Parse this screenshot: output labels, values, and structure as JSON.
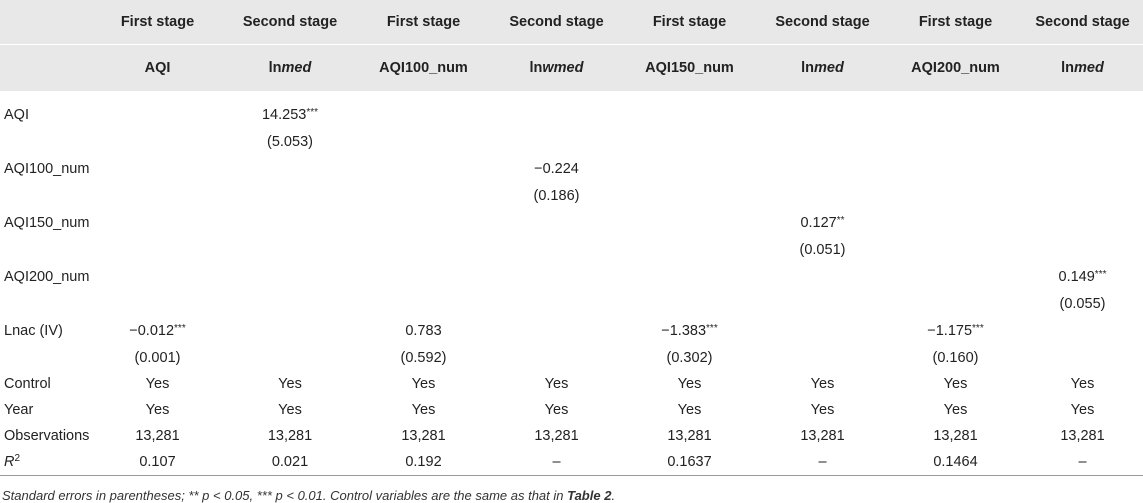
{
  "table": {
    "stage_headers": [
      "",
      "First stage",
      "Second stage",
      "First stage",
      "Second stage",
      "First stage",
      "Second stage",
      "First stage",
      "Second stage"
    ],
    "variable_headers": [
      {
        "main": "",
        "italic": ""
      },
      {
        "main": "AQI",
        "italic": ""
      },
      {
        "main": "ln",
        "italic": "med"
      },
      {
        "main": "AQI100_num",
        "italic": ""
      },
      {
        "main": "ln",
        "italic": "wmed"
      },
      {
        "main": "AQI150_num",
        "italic": ""
      },
      {
        "main": "ln",
        "italic": "med"
      },
      {
        "main": "AQI200_num",
        "italic": ""
      },
      {
        "main": "ln",
        "italic": "med"
      }
    ],
    "rows": [
      {
        "label": "AQI",
        "type": "coef",
        "cells": [
          {
            "v": ""
          },
          {
            "v": "14.253",
            "s": "***"
          },
          {
            "v": ""
          },
          {
            "v": ""
          },
          {
            "v": ""
          },
          {
            "v": ""
          },
          {
            "v": ""
          },
          {
            "v": ""
          }
        ]
      },
      {
        "label": "",
        "type": "se",
        "cells": [
          {
            "v": ""
          },
          {
            "v": "(5.053)"
          },
          {
            "v": ""
          },
          {
            "v": ""
          },
          {
            "v": ""
          },
          {
            "v": ""
          },
          {
            "v": ""
          },
          {
            "v": ""
          }
        ]
      },
      {
        "label": "AQI100_num",
        "type": "coef",
        "cells": [
          {
            "v": ""
          },
          {
            "v": ""
          },
          {
            "v": ""
          },
          {
            "v": "−0.224"
          },
          {
            "v": ""
          },
          {
            "v": ""
          },
          {
            "v": ""
          },
          {
            "v": ""
          }
        ]
      },
      {
        "label": "",
        "type": "se",
        "cells": [
          {
            "v": ""
          },
          {
            "v": ""
          },
          {
            "v": ""
          },
          {
            "v": "(0.186)"
          },
          {
            "v": ""
          },
          {
            "v": ""
          },
          {
            "v": ""
          },
          {
            "v": ""
          }
        ]
      },
      {
        "label": "AQI150_num",
        "type": "coef",
        "cells": [
          {
            "v": ""
          },
          {
            "v": ""
          },
          {
            "v": ""
          },
          {
            "v": ""
          },
          {
            "v": ""
          },
          {
            "v": "0.127",
            "s": "**"
          },
          {
            "v": ""
          },
          {
            "v": ""
          }
        ]
      },
      {
        "label": "",
        "type": "se",
        "cells": [
          {
            "v": ""
          },
          {
            "v": ""
          },
          {
            "v": ""
          },
          {
            "v": ""
          },
          {
            "v": ""
          },
          {
            "v": "(0.051)"
          },
          {
            "v": ""
          },
          {
            "v": ""
          }
        ]
      },
      {
        "label": "AQI200_num",
        "type": "coef",
        "cells": [
          {
            "v": ""
          },
          {
            "v": ""
          },
          {
            "v": ""
          },
          {
            "v": ""
          },
          {
            "v": ""
          },
          {
            "v": ""
          },
          {
            "v": ""
          },
          {
            "v": "0.149",
            "s": "***"
          }
        ]
      },
      {
        "label": "",
        "type": "se",
        "cells": [
          {
            "v": ""
          },
          {
            "v": ""
          },
          {
            "v": ""
          },
          {
            "v": ""
          },
          {
            "v": ""
          },
          {
            "v": ""
          },
          {
            "v": ""
          },
          {
            "v": "(0.055)"
          }
        ]
      },
      {
        "label": "Lnac (IV)",
        "type": "coef",
        "cells": [
          {
            "v": "−0.012",
            "s": "***"
          },
          {
            "v": ""
          },
          {
            "v": "0.783"
          },
          {
            "v": ""
          },
          {
            "v": "−1.383",
            "s": "***"
          },
          {
            "v": ""
          },
          {
            "v": "−1.175",
            "s": "***"
          },
          {
            "v": ""
          }
        ]
      },
      {
        "label": "",
        "type": "se",
        "cells": [
          {
            "v": "(0.001)"
          },
          {
            "v": ""
          },
          {
            "v": "(0.592)"
          },
          {
            "v": ""
          },
          {
            "v": "(0.302)"
          },
          {
            "v": ""
          },
          {
            "v": "(0.160)"
          },
          {
            "v": ""
          }
        ]
      },
      {
        "label": "Control",
        "type": "info",
        "cells": [
          {
            "v": "Yes"
          },
          {
            "v": "Yes"
          },
          {
            "v": "Yes"
          },
          {
            "v": "Yes"
          },
          {
            "v": "Yes"
          },
          {
            "v": "Yes"
          },
          {
            "v": "Yes"
          },
          {
            "v": "Yes"
          }
        ]
      },
      {
        "label": "Year",
        "type": "info",
        "cells": [
          {
            "v": "Yes"
          },
          {
            "v": "Yes"
          },
          {
            "v": "Yes"
          },
          {
            "v": "Yes"
          },
          {
            "v": "Yes"
          },
          {
            "v": "Yes"
          },
          {
            "v": "Yes"
          },
          {
            "v": "Yes"
          }
        ]
      },
      {
        "label": "Observations",
        "type": "info",
        "cells": [
          {
            "v": "13,281"
          },
          {
            "v": "13,281"
          },
          {
            "v": "13,281"
          },
          {
            "v": "13,281"
          },
          {
            "v": "13,281"
          },
          {
            "v": "13,281"
          },
          {
            "v": "13,281"
          },
          {
            "v": "13,281"
          }
        ]
      },
      {
        "label": "R",
        "label_sup": "2",
        "type": "r2",
        "cells": [
          {
            "v": "0.107"
          },
          {
            "v": "0.021"
          },
          {
            "v": "0.192"
          },
          {
            "v": "–"
          },
          {
            "v": "0.1637"
          },
          {
            "v": "–"
          },
          {
            "v": "0.1464"
          },
          {
            "v": "–"
          }
        ]
      }
    ]
  },
  "footnote": {
    "text": "Standard errors in parentheses; ** p < 0.05, *** p < 0.01. Control variables are the same as that in ",
    "ref": "Table 2",
    "end": "."
  }
}
